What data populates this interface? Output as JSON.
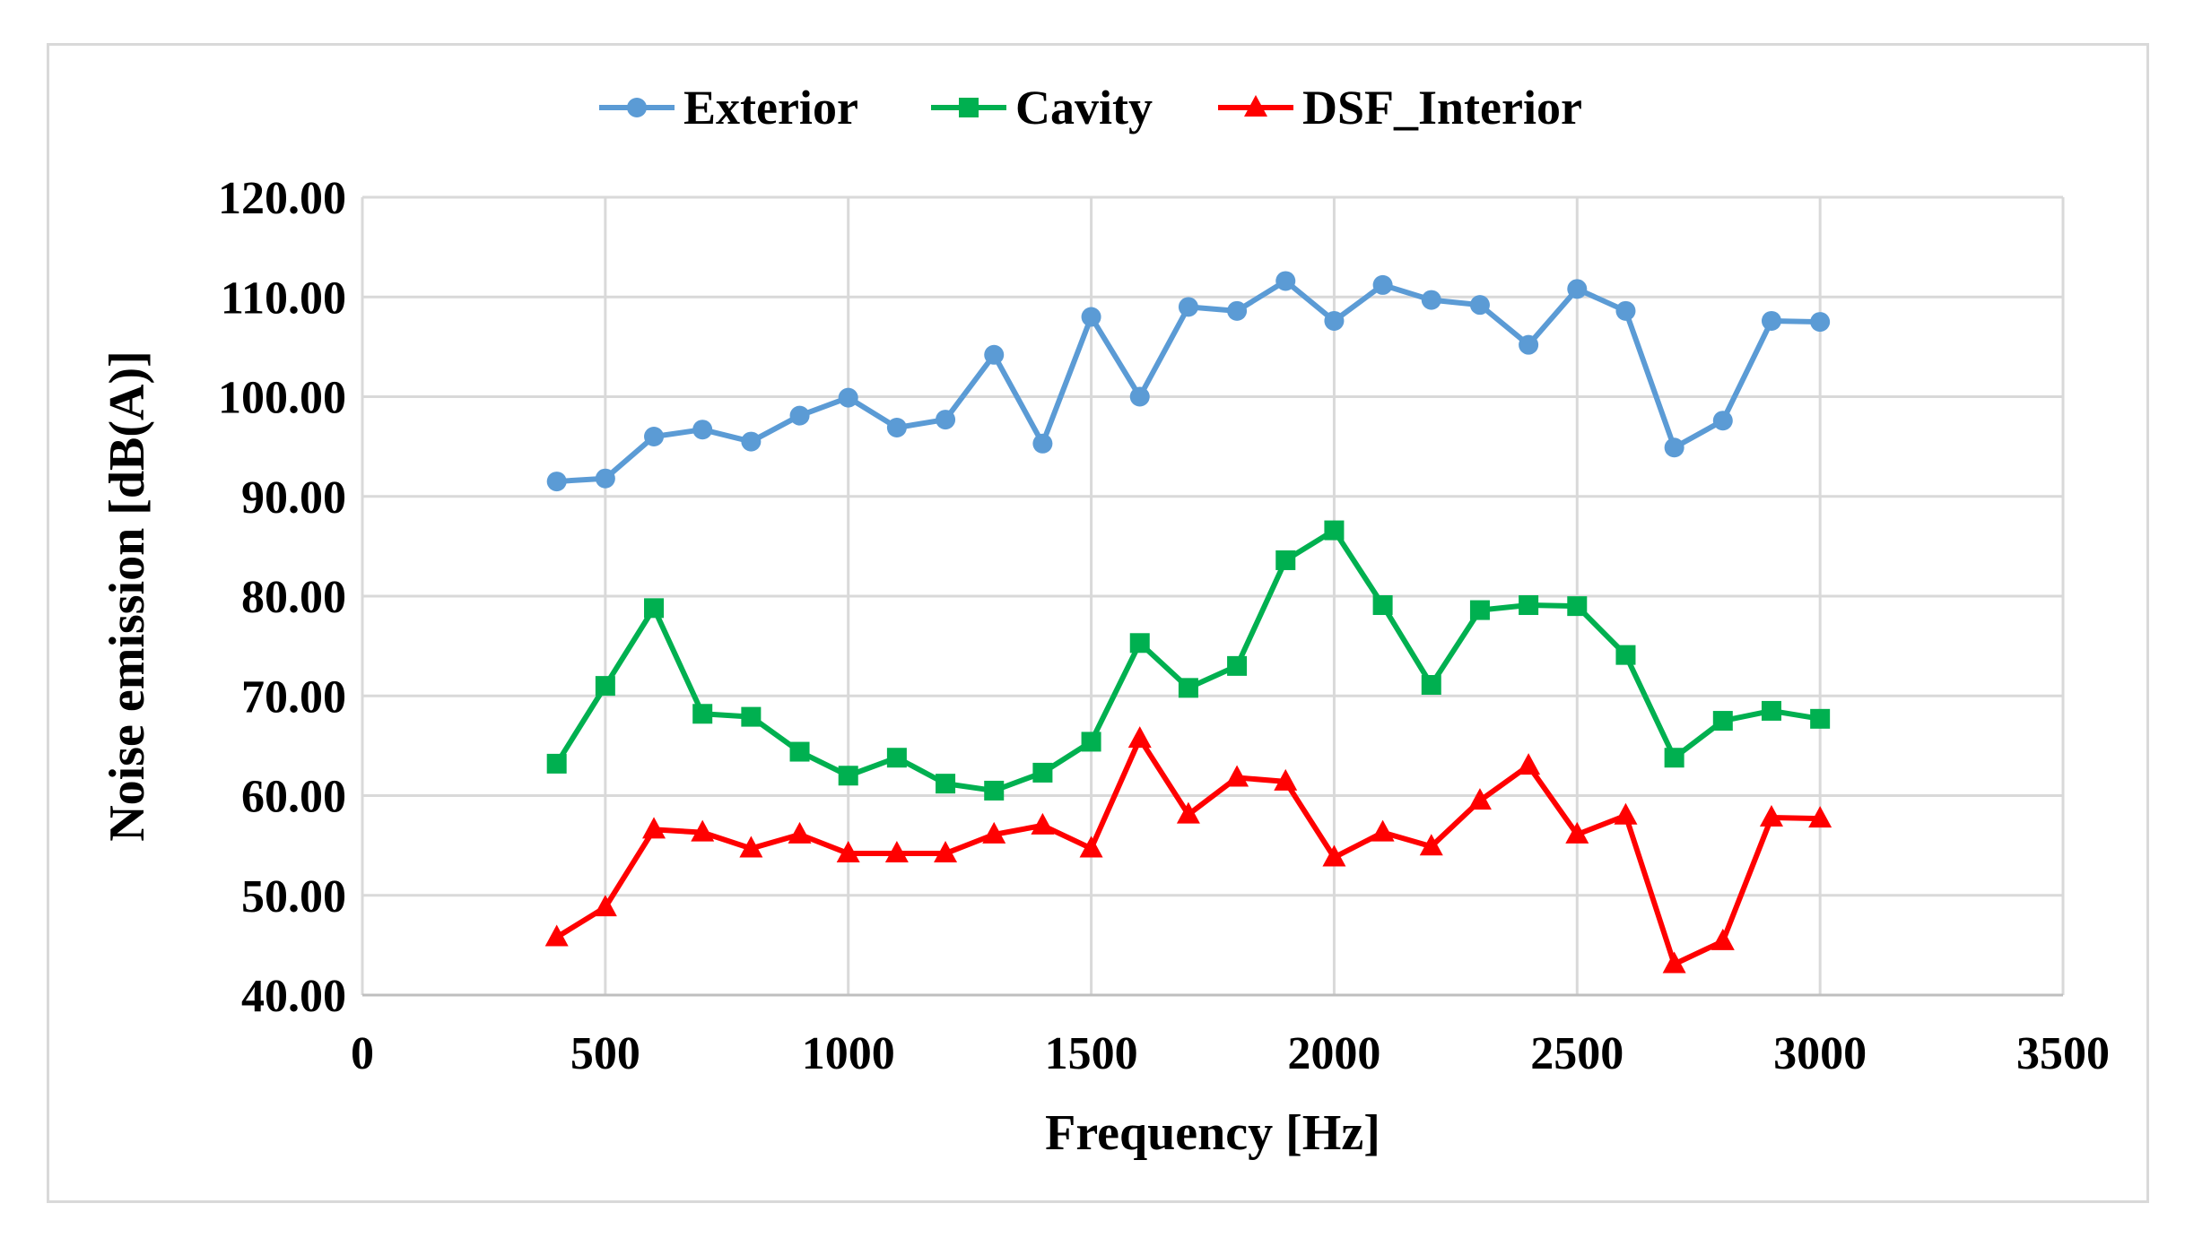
{
  "chart_data": {
    "type": "line",
    "title": "",
    "xlabel": "Frequency [Hz]",
    "ylabel": "Noise emission [dB(A)]",
    "xlim": [
      0,
      3500
    ],
    "ylim": [
      40,
      120
    ],
    "x_ticks": [
      0,
      500,
      1000,
      1500,
      2000,
      2500,
      3000,
      3500
    ],
    "x_tick_labels": [
      "0",
      "500",
      "1000",
      "1500",
      "2000",
      "2500",
      "3000",
      "3500"
    ],
    "y_ticks": [
      40,
      50,
      60,
      70,
      80,
      90,
      100,
      110,
      120
    ],
    "y_tick_labels": [
      "40.00",
      "50.00",
      "60.00",
      "70.00",
      "80.00",
      "90.00",
      "100.00",
      "110.00",
      "120.00"
    ],
    "grid": true,
    "legend_position": "top-center",
    "x": [
      400,
      500,
      600,
      700,
      800,
      900,
      1000,
      1100,
      1200,
      1300,
      1400,
      1500,
      1600,
      1700,
      1800,
      1900,
      2000,
      2100,
      2200,
      2300,
      2400,
      2500,
      2600,
      2700,
      2800,
      2900,
      3000
    ],
    "series": [
      {
        "name": "Exterior",
        "color": "#5b9bd5",
        "marker": "circle",
        "values": [
          91.5,
          91.8,
          96.0,
          96.7,
          95.5,
          98.1,
          99.9,
          96.9,
          97.7,
          104.2,
          95.3,
          108.0,
          100.0,
          109.0,
          108.6,
          111.6,
          107.6,
          111.2,
          109.7,
          109.2,
          105.2,
          110.8,
          108.6,
          94.9,
          97.6,
          107.6,
          107.5
        ]
      },
      {
        "name": "Cavity",
        "color": "#00b050",
        "marker": "square",
        "values": [
          63.2,
          71.0,
          78.8,
          68.2,
          67.9,
          64.4,
          62.0,
          63.8,
          61.2,
          60.5,
          62.3,
          65.4,
          75.3,
          70.8,
          73.0,
          83.6,
          86.6,
          79.1,
          71.1,
          78.6,
          79.1,
          79.0,
          74.1,
          63.8,
          67.5,
          68.5,
          67.7
        ]
      },
      {
        "name": "DSF_Interior",
        "color": "#ff0000",
        "marker": "triangle",
        "values": [
          45.8,
          48.8,
          56.6,
          56.3,
          54.7,
          56.1,
          54.2,
          54.2,
          54.2,
          56.1,
          57.0,
          54.7,
          65.7,
          58.1,
          61.8,
          61.4,
          53.8,
          56.3,
          54.9,
          59.5,
          63.0,
          56.1,
          58.0,
          43.1,
          45.4,
          57.8,
          57.7
        ]
      }
    ]
  }
}
